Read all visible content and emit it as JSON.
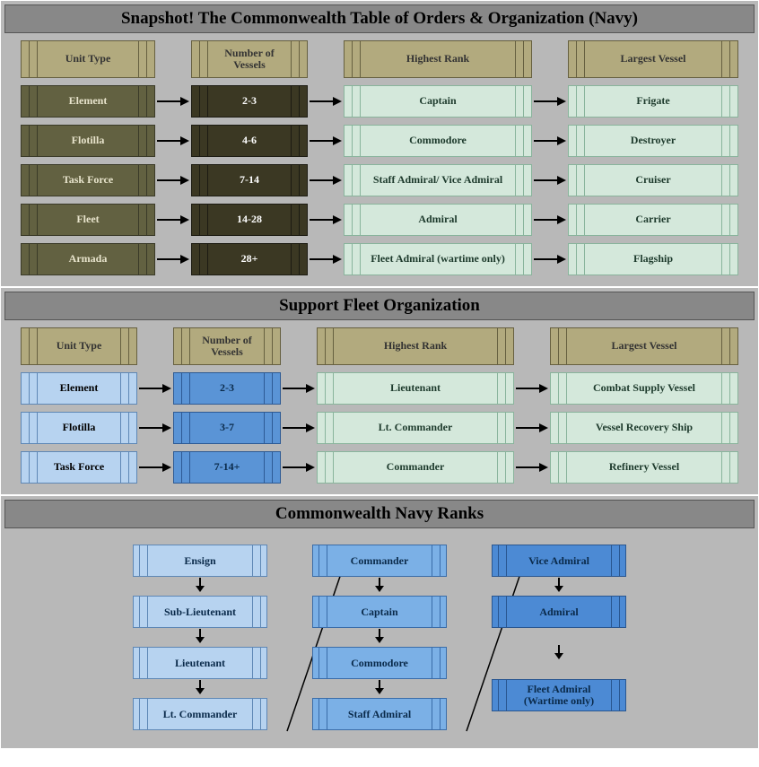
{
  "colors": {
    "sectionBg": "#b8b8b8",
    "titleBg": "#888888",
    "headerFill": "#b2aa7e",
    "headerBorder": "#666040",
    "oliveFill": "#626141",
    "oliveBorder": "#3a3a28",
    "oliveText": "#e8e4cc",
    "darkFill": "#3b3823",
    "darkBorder": "#1c1b12",
    "darkText": "#ffffff",
    "mintFill": "#d4e8db",
    "mintBorder": "#89b49c",
    "mintText": "#1d3a2c",
    "blueLight": "#b7d3f0",
    "blueLightBorder": "#5e87b5",
    "blueMid": "#7bb0e6",
    "blueMidBorder": "#3a6ca8",
    "blueDeep": "#5a94d6",
    "blueDeepBorder": "#2d5a94",
    "blueVivid": "#4c8ad4",
    "blueVividBorder": "#295690",
    "black": "#000000"
  },
  "section1": {
    "title": "Snapshot! The Commonwealth Table of Orders & Organization (Navy)",
    "headers": [
      "Unit Type",
      "Number of Vessels",
      "Highest Rank",
      "Largest Vessel"
    ],
    "rows": [
      {
        "unit": "Element",
        "vessels": "2-3",
        "rank": "Captain",
        "largest": "Frigate"
      },
      {
        "unit": "Flotilla",
        "vessels": "4-6",
        "rank": "Commodore",
        "largest": "Destroyer"
      },
      {
        "unit": "Task Force",
        "vessels": "7-14",
        "rank": "Staff Admiral/ Vice Admiral",
        "largest": "Cruiser"
      },
      {
        "unit": "Fleet",
        "vessels": "14-28",
        "rank": "Admiral",
        "largest": "Carrier"
      },
      {
        "unit": "Armada",
        "vessels": "28+",
        "rank": "Fleet Admiral (wartime only)",
        "largest": "Flagship"
      }
    ]
  },
  "section2": {
    "title": "Support Fleet Organization",
    "headers": [
      "Unit Type",
      "Number of Vessels",
      "Highest Rank",
      "Largest Vessel"
    ],
    "rows": [
      {
        "unit": "Element",
        "vessels": "2-3",
        "rank": "Lieutenant",
        "largest": "Combat Supply Vessel"
      },
      {
        "unit": "Flotilla",
        "vessels": "3-7",
        "rank": "Lt. Commander",
        "largest": "Vessel Recovery Ship"
      },
      {
        "unit": "Task Force",
        "vessels": "7-14+",
        "rank": "Commander",
        "largest": "Refinery Vessel"
      }
    ]
  },
  "section3": {
    "title": "Commonwealth Navy Ranks",
    "columns": [
      {
        "shade": "light",
        "items": [
          "Ensign",
          "Sub-Lieutenant",
          "Lieutenant",
          "Lt. Commander"
        ]
      },
      {
        "shade": "mid",
        "items": [
          "Commander",
          "Captain",
          "Commodore",
          "Staff Admiral"
        ]
      },
      {
        "shade": "deep",
        "items": [
          "Vice Admiral",
          "Admiral",
          "Fleet Admiral (Wartime only)"
        ],
        "extraGap": true
      }
    ]
  }
}
